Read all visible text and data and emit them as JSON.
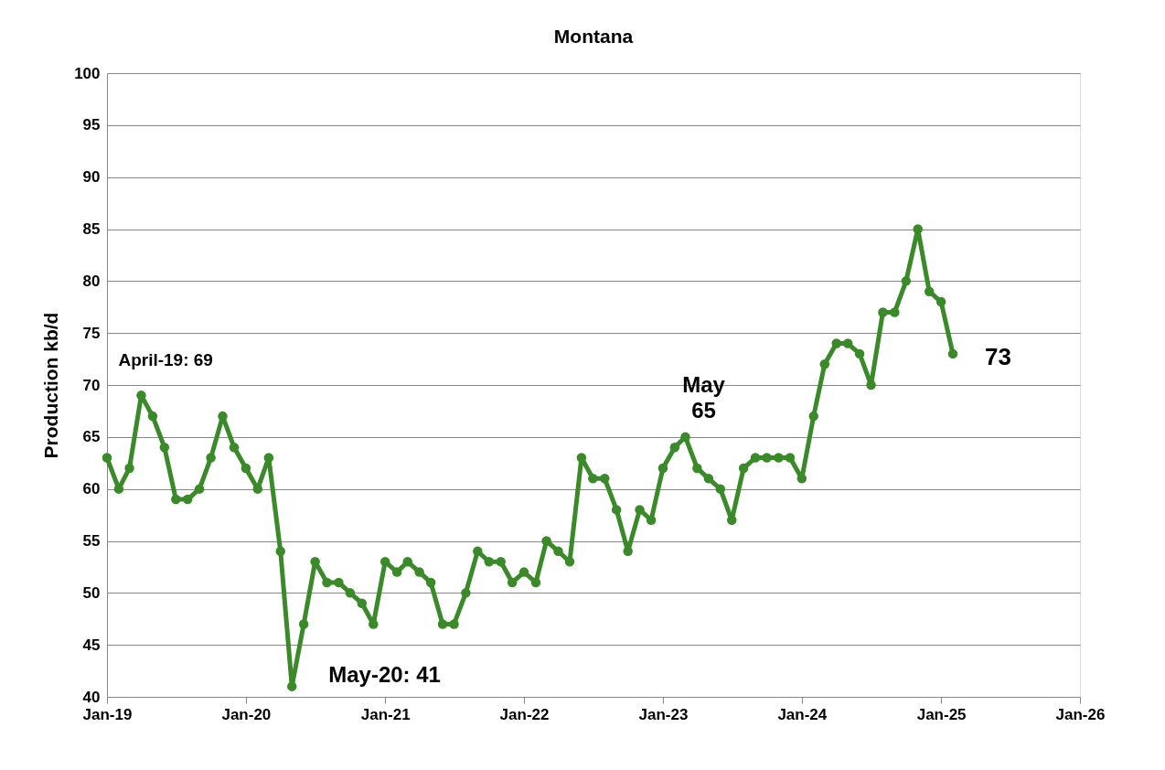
{
  "chart_data": {
    "type": "line",
    "title": "Montana",
    "ylabel": "Production kb/d",
    "x": [
      "2019-01",
      "2019-02",
      "2019-03",
      "2019-04",
      "2019-05",
      "2019-06",
      "2019-07",
      "2019-08",
      "2019-09",
      "2019-10",
      "2019-11",
      "2019-12",
      "2020-01",
      "2020-02",
      "2020-03",
      "2020-04",
      "2020-05",
      "2020-06",
      "2020-07",
      "2020-08",
      "2020-09",
      "2020-10",
      "2020-11",
      "2020-12",
      "2021-01",
      "2021-02",
      "2021-03",
      "2021-04",
      "2021-05",
      "2021-06",
      "2021-07",
      "2021-08",
      "2021-09",
      "2021-10",
      "2021-11",
      "2021-12",
      "2022-01",
      "2022-02",
      "2022-03",
      "2022-04",
      "2022-05",
      "2022-06",
      "2022-07",
      "2022-08",
      "2022-09",
      "2022-10",
      "2022-11",
      "2022-12",
      "2023-01",
      "2023-02",
      "2023-03",
      "2023-04",
      "2023-05",
      "2023-06",
      "2023-07",
      "2023-08",
      "2023-09",
      "2023-10",
      "2023-11",
      "2023-12",
      "2024-01",
      "2024-02",
      "2024-03",
      "2024-04",
      "2024-05",
      "2024-06",
      "2024-07",
      "2024-08",
      "2024-09",
      "2024-10",
      "2024-11",
      "2024-12",
      "2025-01",
      "2025-02"
    ],
    "series": [
      {
        "color": "#3a8a2a",
        "values": [
          63,
          60,
          62,
          69,
          67,
          64,
          59,
          59,
          60,
          63,
          67,
          64,
          62,
          60,
          63,
          54,
          41,
          47,
          53,
          51,
          51,
          50,
          49,
          47,
          53,
          52,
          53,
          52,
          51,
          47,
          47,
          50,
          54,
          53,
          53,
          51,
          52,
          51,
          55,
          54,
          53,
          63,
          61,
          61,
          58,
          54,
          58,
          57,
          62,
          64,
          65,
          62,
          61,
          60,
          57,
          62,
          63,
          63,
          63,
          63,
          61,
          67,
          72,
          74,
          74,
          73,
          70,
          77,
          77,
          80,
          85,
          79,
          78,
          73
        ]
      }
    ],
    "xlim": [
      "2019-01",
      "2026-01"
    ],
    "xticks": [
      {
        "value": "2019-01",
        "label": "Jan-19"
      },
      {
        "value": "2020-01",
        "label": "Jan-20"
      },
      {
        "value": "2021-01",
        "label": "Jan-21"
      },
      {
        "value": "2022-01",
        "label": "Jan-22"
      },
      {
        "value": "2023-01",
        "label": "Jan-23"
      },
      {
        "value": "2024-01",
        "label": "Jan-24"
      },
      {
        "value": "2025-01",
        "label": "Jan-25"
      },
      {
        "value": "2026-01",
        "label": "Jan-26"
      }
    ],
    "ylim": [
      40,
      100
    ],
    "yticks": [
      40,
      45,
      50,
      55,
      60,
      65,
      70,
      75,
      80,
      85,
      90,
      95,
      100
    ],
    "grid": "y",
    "marker": "circle",
    "line_style": "solid",
    "annotations": [
      {
        "text": "April-19: 69",
        "x": "2019-04",
        "y": 69
      },
      {
        "text": "May-20: 41",
        "x": "2020-05",
        "y": 41
      },
      {
        "text": "May\n65",
        "x": "2023-03",
        "y": 65
      },
      {
        "text": "73",
        "x": "2025-02",
        "y": 73
      }
    ]
  }
}
